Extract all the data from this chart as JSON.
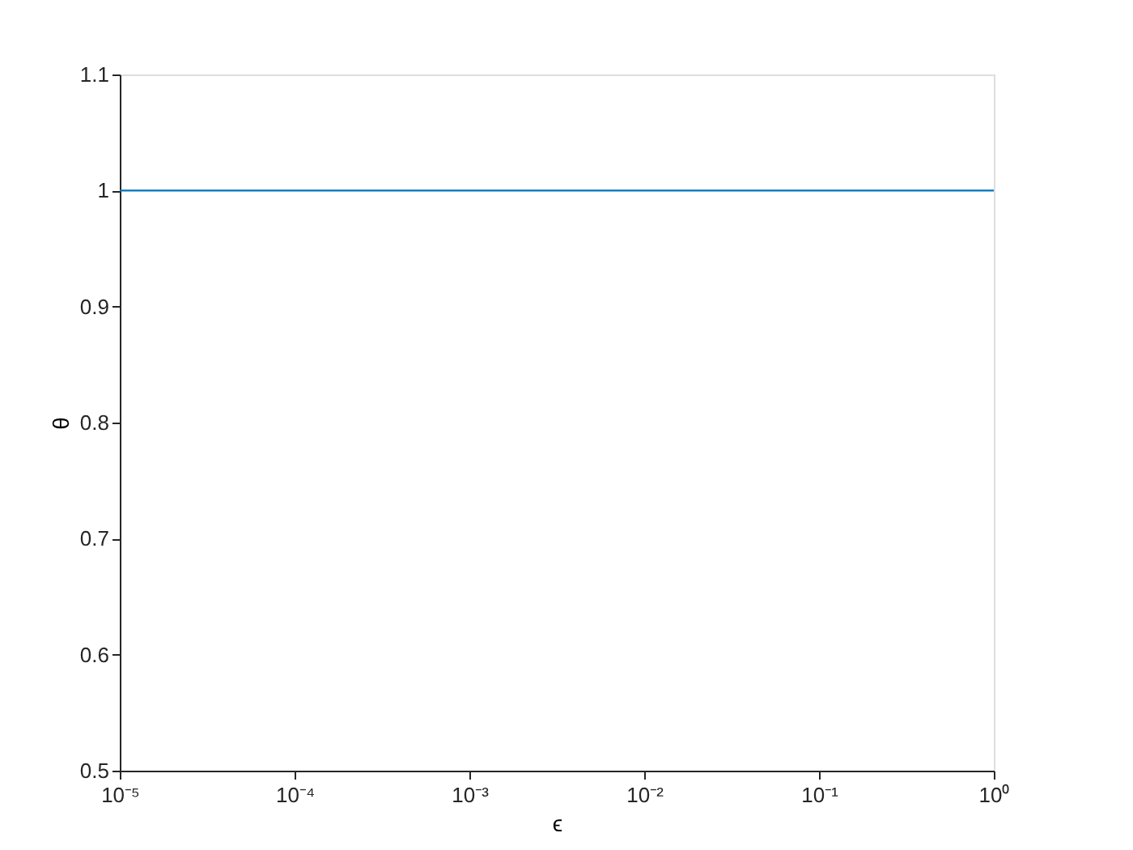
{
  "chart_data": {
    "type": "line",
    "xlabel": "ϵ",
    "ylabel": "θ",
    "log": "x",
    "grid": false,
    "xlim": [
      1e-05,
      1
    ],
    "xticks": [
      {
        "value": 1e-05,
        "label": "10⁻⁵"
      },
      {
        "value": 0.0001,
        "label": "10⁻⁴"
      },
      {
        "value": 0.001,
        "label": "10⁻³"
      },
      {
        "value": 0.01,
        "label": "10⁻²"
      },
      {
        "value": 0.1,
        "label": "10⁻¹"
      },
      {
        "value": 1,
        "label": "10⁰"
      }
    ],
    "ylim": [
      0.5,
      1.1
    ],
    "yticks": [
      0.5,
      0.6,
      0.7,
      0.8,
      0.9,
      1,
      1.1
    ],
    "series": [
      {
        "color": "#0072bd",
        "x": [
          1e-05,
          1
        ],
        "values": [
          1,
          1
        ]
      }
    ]
  }
}
